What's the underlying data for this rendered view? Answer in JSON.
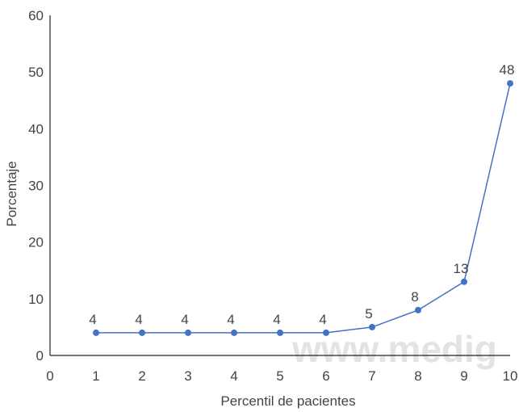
{
  "chart_data": {
    "type": "line",
    "xlabel": "Percentil de pacientes",
    "ylabel": "Porcentaje",
    "xlim": [
      0,
      10
    ],
    "ylim": [
      0,
      60
    ],
    "x_ticks": [
      0,
      1,
      2,
      3,
      4,
      5,
      6,
      7,
      8,
      9,
      10
    ],
    "y_ticks": [
      0,
      10,
      20,
      30,
      40,
      50,
      60
    ],
    "grid": false,
    "series": [
      {
        "color": "#4472c4",
        "x": [
          1,
          2,
          3,
          4,
          5,
          6,
          7,
          8,
          9,
          10
        ],
        "values": [
          4,
          4,
          4,
          4,
          4,
          4,
          5,
          8,
          13,
          48
        ],
        "labels": [
          "4",
          "4",
          "4",
          "4",
          "4",
          "4",
          "5",
          "8",
          "13",
          "48"
        ]
      }
    ]
  },
  "watermark": "www.medig"
}
